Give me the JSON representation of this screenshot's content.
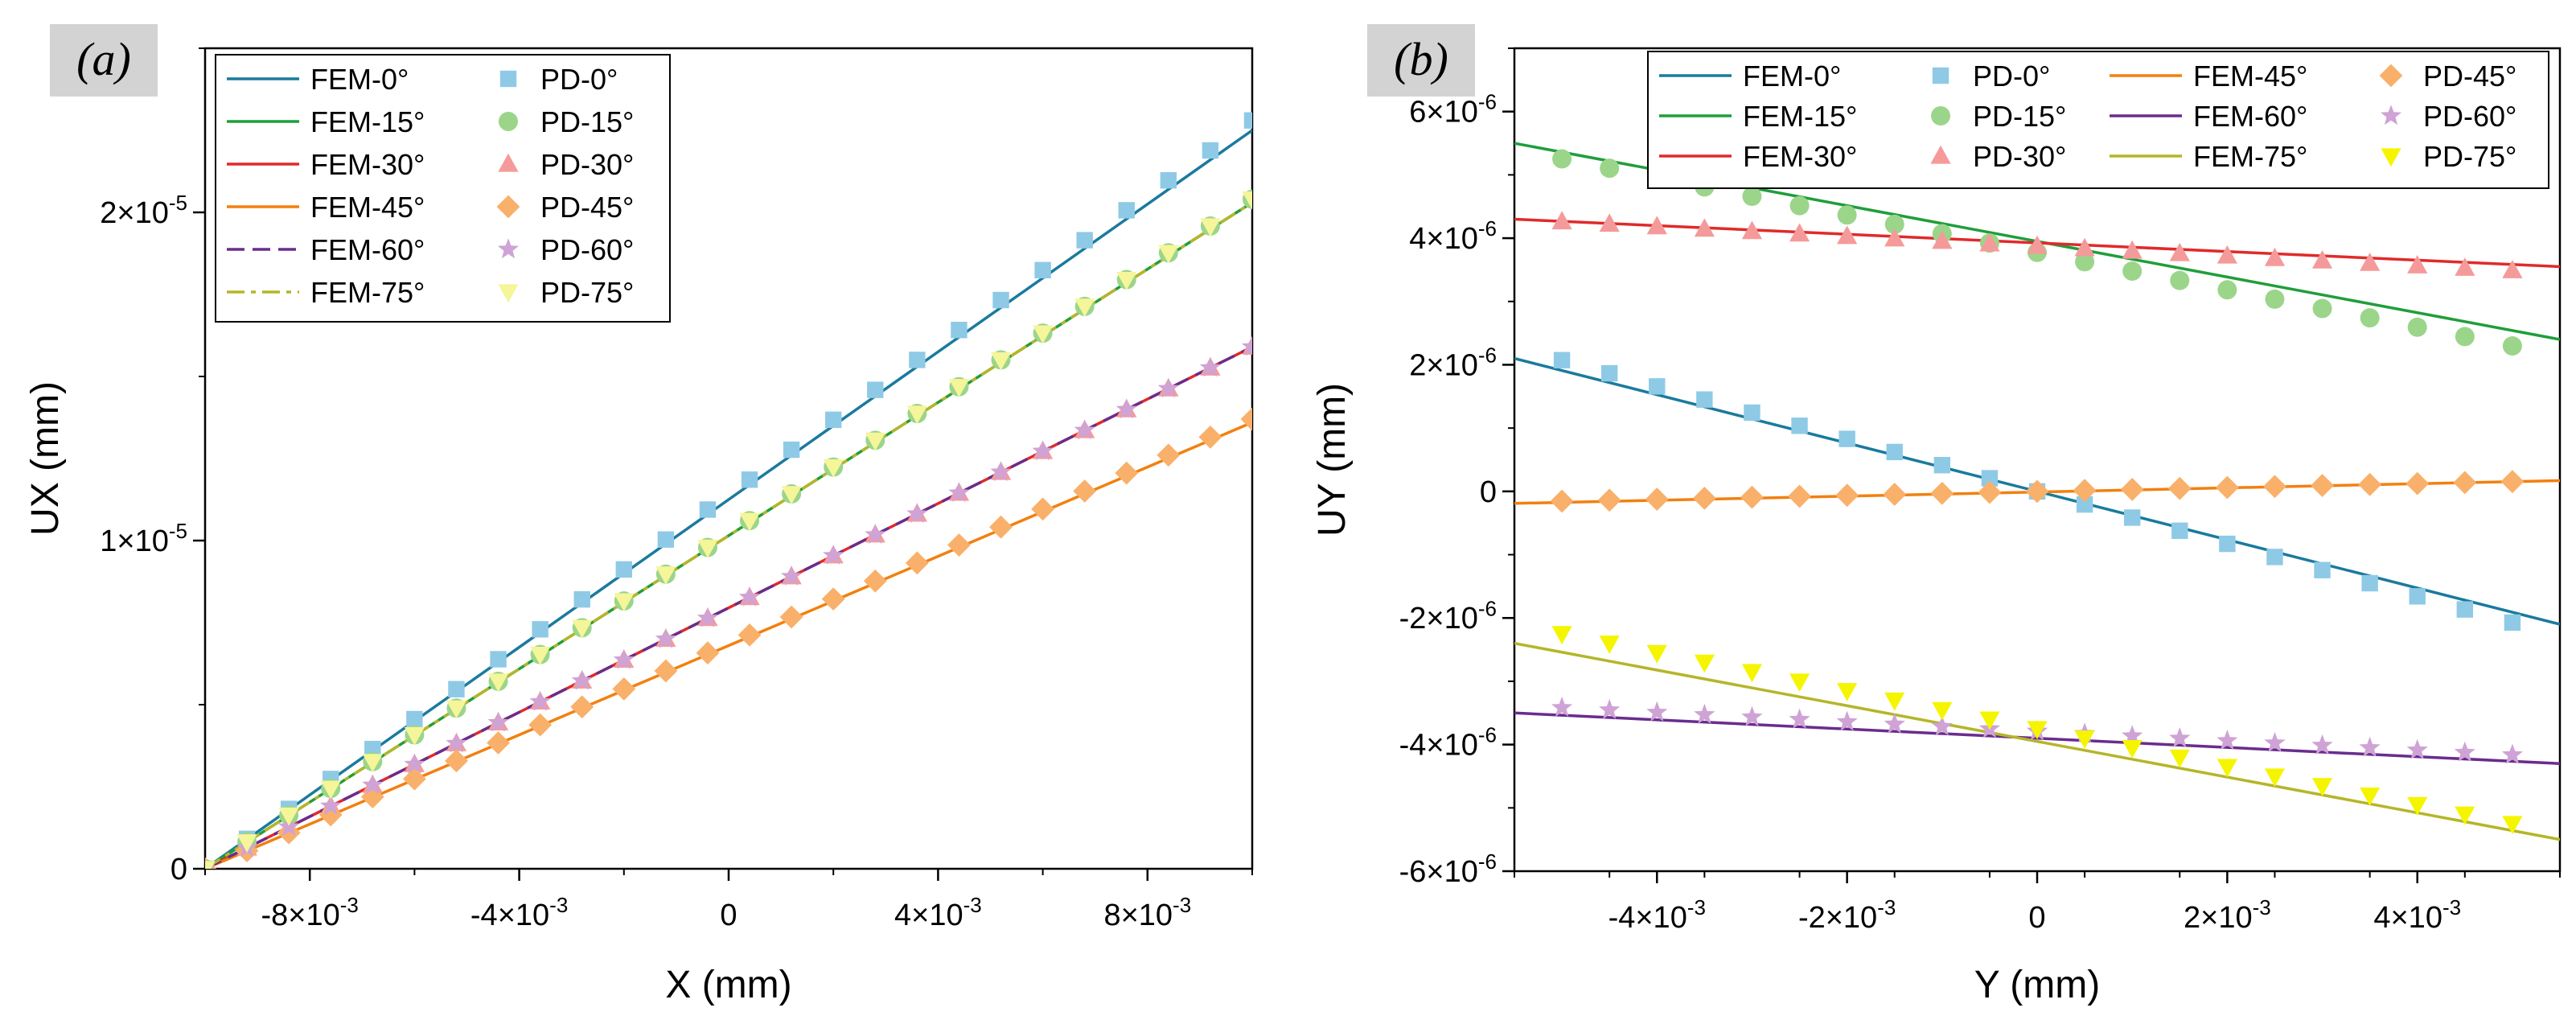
{
  "chart_data": [
    {
      "panel": "(a)",
      "type": "line",
      "xlabel": "X (mm)",
      "ylabel": "UX (mm)",
      "xlim": [
        -0.01,
        0.01
      ],
      "ylim": [
        0,
        2.5e-05
      ],
      "xticks": [
        {
          "value": -0.008,
          "base": "-8×10",
          "exp": "-3"
        },
        {
          "value": -0.004,
          "base": "-4×10",
          "exp": "-3"
        },
        {
          "value": 0,
          "base": "0",
          "exp": ""
        },
        {
          "value": 0.004,
          "base": "4×10",
          "exp": "-3"
        },
        {
          "value": 0.008,
          "base": "8×10",
          "exp": "-3"
        }
      ],
      "yticks": [
        {
          "value": 0,
          "base": "0",
          "exp": ""
        },
        {
          "value": 1e-05,
          "base": "1×10",
          "exp": "-5"
        },
        {
          "value": 2e-05,
          "base": "2×10",
          "exp": "-5"
        }
      ],
      "fem": [
        {
          "name": "FEM-0°",
          "color": "#1a7a9e",
          "dash": "",
          "y0": 0,
          "y1": 2.25e-05
        },
        {
          "name": "FEM-15°",
          "color": "#1f9e3a",
          "dash": "",
          "y0": 0,
          "y1": 2.03e-05
        },
        {
          "name": "FEM-30°",
          "color": "#e02a2a",
          "dash": "",
          "y0": 0,
          "y1": 1.59e-05
        },
        {
          "name": "FEM-45°",
          "color": "#f2800f",
          "dash": "",
          "y0": 0,
          "y1": 1.36e-05
        },
        {
          "name": "FEM-60°",
          "color": "#6a2c8e",
          "dash": "22,10",
          "y0": 0,
          "y1": 1.59e-05
        },
        {
          "name": "FEM-75°",
          "color": "#b5b52a",
          "dash": "22,8,6,8",
          "y0": 0,
          "y1": 2.03e-05
        }
      ],
      "pd": [
        {
          "name": "PD-0°",
          "color": "#8ecae6",
          "marker": "square",
          "y0": 0,
          "y1": 2.28e-05
        },
        {
          "name": "PD-15°",
          "color": "#9bd58a",
          "marker": "circle",
          "y0": 0,
          "y1": 2.04e-05
        },
        {
          "name": "PD-30°",
          "color": "#f59a9a",
          "marker": "triangle-up",
          "y0": 0,
          "y1": 1.59e-05
        },
        {
          "name": "PD-45°",
          "color": "#f9b06a",
          "marker": "diamond",
          "y0": 0,
          "y1": 1.37e-05
        },
        {
          "name": "PD-60°",
          "color": "#cfa3d6",
          "marker": "star",
          "y0": 0,
          "y1": 1.59e-05
        },
        {
          "name": "PD-75°",
          "color": "#f5f59a",
          "marker": "triangle-down",
          "y0": 0,
          "y1": 2.04e-05
        }
      ]
    },
    {
      "panel": "(b)",
      "type": "line",
      "xlabel": "Y (mm)",
      "ylabel": "UY (mm)",
      "xlim": [
        -0.0055,
        0.0055
      ],
      "ylim": [
        -6e-06,
        7e-06
      ],
      "xticks": [
        {
          "value": -0.004,
          "base": "-4×10",
          "exp": "-3"
        },
        {
          "value": -0.002,
          "base": "-2×10",
          "exp": "-3"
        },
        {
          "value": 0,
          "base": "0",
          "exp": ""
        },
        {
          "value": 0.002,
          "base": "2×10",
          "exp": "-3"
        },
        {
          "value": 0.004,
          "base": "4×10",
          "exp": "-3"
        }
      ],
      "yticks": [
        {
          "value": -6e-06,
          "base": "-6×10",
          "exp": "-6"
        },
        {
          "value": -4e-06,
          "base": "-4×10",
          "exp": "-6"
        },
        {
          "value": -2e-06,
          "base": "-2×10",
          "exp": "-6"
        },
        {
          "value": 0,
          "base": "0",
          "exp": ""
        },
        {
          "value": 2e-06,
          "base": "2×10",
          "exp": "-6"
        },
        {
          "value": 4e-06,
          "base": "4×10",
          "exp": "-6"
        },
        {
          "value": 6e-06,
          "base": "6×10",
          "exp": "-6"
        }
      ],
      "fem": [
        {
          "name": "FEM-0°",
          "color": "#1a7a9e",
          "y0": 2.1e-06,
          "y1": -2.1e-06
        },
        {
          "name": "FEM-15°",
          "color": "#1f9e3a",
          "y0": 5.5e-06,
          "y1": 2.4e-06
        },
        {
          "name": "FEM-30°",
          "color": "#e02a2a",
          "y0": 4.3e-06,
          "y1": 3.55e-06
        },
        {
          "name": "FEM-45°",
          "color": "#f2800f",
          "y0": -1.9e-07,
          "y1": 1.7e-07
        },
        {
          "name": "FEM-60°",
          "color": "#6a2c8e",
          "y0": -3.5e-06,
          "y1": -4.3e-06
        },
        {
          "name": "FEM-75°",
          "color": "#b5b52a",
          "y0": -2.4e-06,
          "y1": -5.5e-06
        }
      ],
      "pd": [
        {
          "name": "PD-0°",
          "color": "#8ecae6",
          "marker": "square",
          "y0": 2.28e-06,
          "y1": -2.28e-06
        },
        {
          "name": "PD-15°",
          "color": "#9bd58a",
          "marker": "circle",
          "y0": 5.4e-06,
          "y1": 2.15e-06
        },
        {
          "name": "PD-30°",
          "color": "#f59a9a",
          "marker": "triangle-up",
          "y0": 4.3e-06,
          "y1": 3.45e-06
        },
        {
          "name": "PD-45°",
          "color": "#f9b06a",
          "marker": "diamond",
          "y0": -1.7e-07,
          "y1": 1.7e-07
        },
        {
          "name": "PD-60°",
          "color": "#cfa3d6",
          "marker": "star",
          "y0": -3.38e-06,
          "y1": -4.2e-06
        },
        {
          "name": "PD-75°",
          "color": "#f5f500",
          "marker": "triangle-down",
          "y0": -2.1e-06,
          "y1": -5.4e-06
        }
      ]
    }
  ]
}
